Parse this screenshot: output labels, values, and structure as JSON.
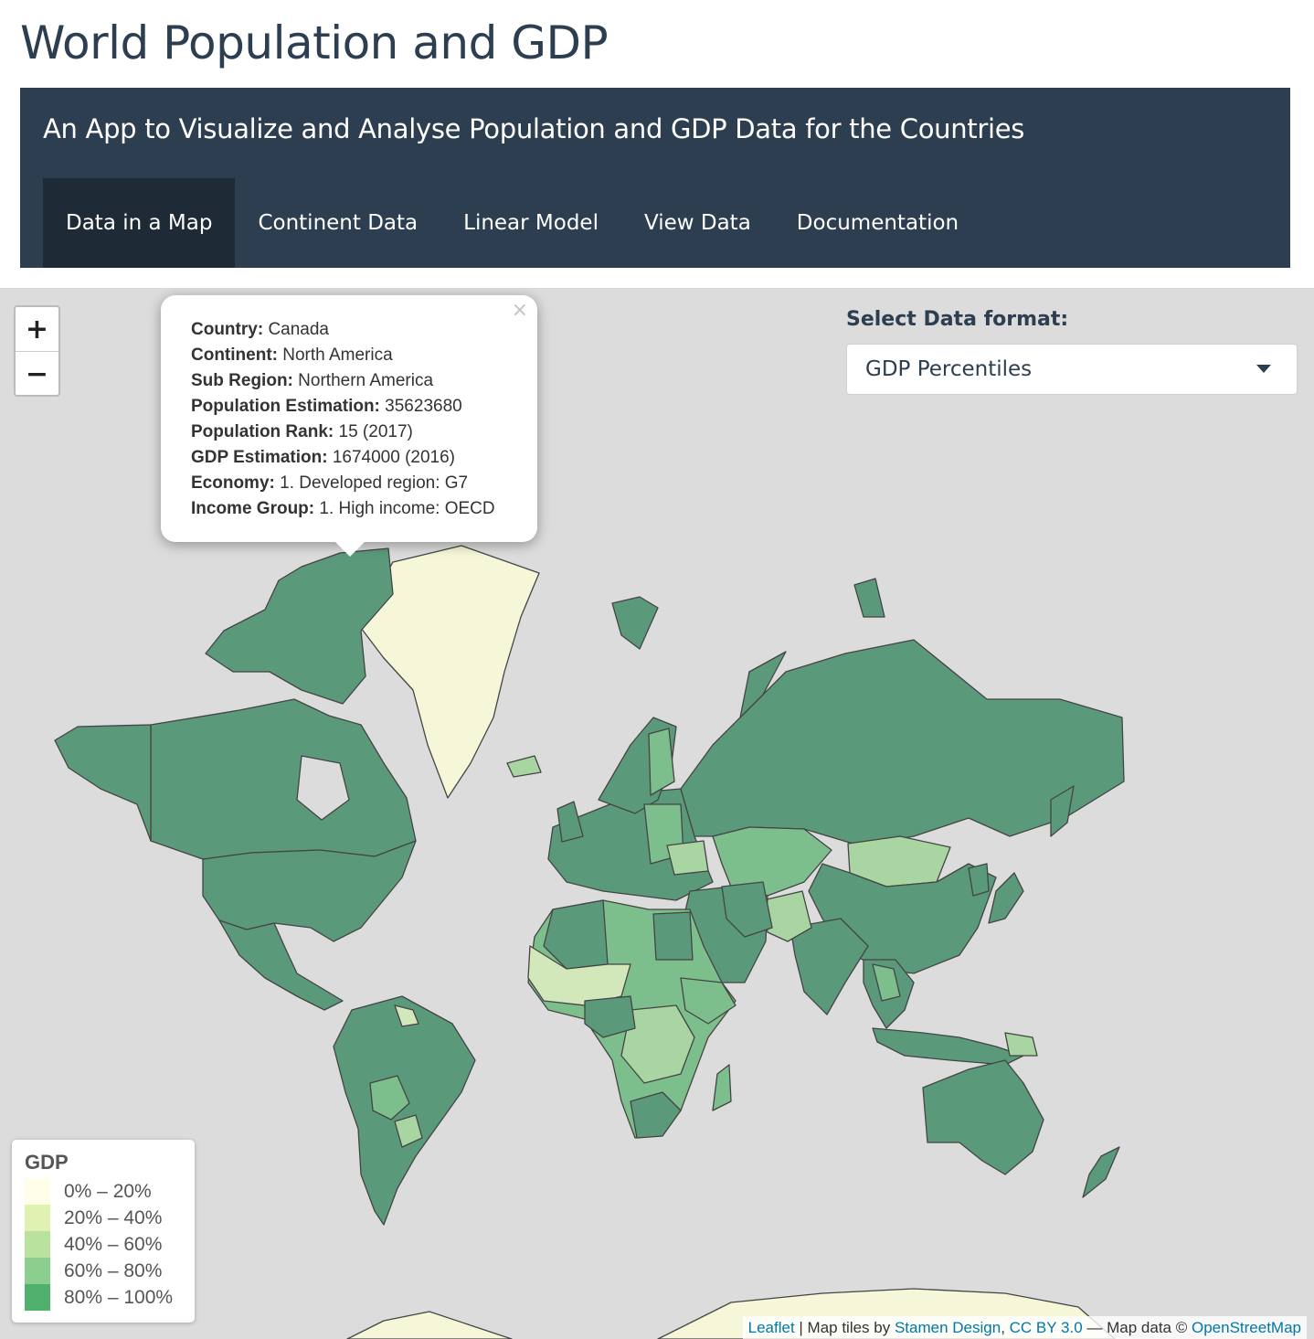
{
  "app": {
    "title": "World Population and GDP",
    "subtitle": "An App to Visualize and Analyse Population and GDP Data for the Countries"
  },
  "tabs": [
    {
      "label": "Data in a Map",
      "active": true
    },
    {
      "label": "Continent Data",
      "active": false
    },
    {
      "label": "Linear Model",
      "active": false
    },
    {
      "label": "View Data",
      "active": false
    },
    {
      "label": "Documentation",
      "active": false
    }
  ],
  "map": {
    "zoom_in": "+",
    "zoom_out": "−",
    "popup": {
      "close": "×",
      "rows": [
        {
          "key": "Country:",
          "value": "Canada"
        },
        {
          "key": "Continent:",
          "value": "North America"
        },
        {
          "key": "Sub Region:",
          "value": "Northern America"
        },
        {
          "key": "Population Estimation:",
          "value": "35623680"
        },
        {
          "key": "Population Rank:",
          "value": "15 (2017)"
        },
        {
          "key": "GDP Estimation:",
          "value": "1674000 (2016)"
        },
        {
          "key": "Economy:",
          "value": "1. Developed region: G7"
        },
        {
          "key": "Income Group:",
          "value": "1. High income: OECD"
        }
      ]
    },
    "select": {
      "label": "Select Data format:",
      "value": "GDP Percentiles"
    },
    "legend": {
      "title": "GDP",
      "items": [
        {
          "label": "0% – 20%",
          "color": "#ffffe5"
        },
        {
          "label": "20% – 40%",
          "color": "#d9f0a3"
        },
        {
          "label": "40% – 60%",
          "color": "#addd8e"
        },
        {
          "label": "60% – 80%",
          "color": "#78c679"
        },
        {
          "label": "80% – 100%",
          "color": "#31a354"
        }
      ]
    },
    "attribution": {
      "leaflet": "Leaflet",
      "sep": " | Map tiles by ",
      "stamen": "Stamen Design",
      "comma": ", ",
      "cc": "CC BY 3.0",
      "mapdata": " — Map data © ",
      "osm": "OpenStreetMap"
    },
    "colors": {
      "ocean": "#dcdcdc",
      "q1": "#f6f7d9",
      "q2": "#d2e8bb",
      "q3": "#a9d5a2",
      "q4": "#7dbf8c",
      "q5": "#5a9a7b",
      "border": "#444444"
    }
  }
}
